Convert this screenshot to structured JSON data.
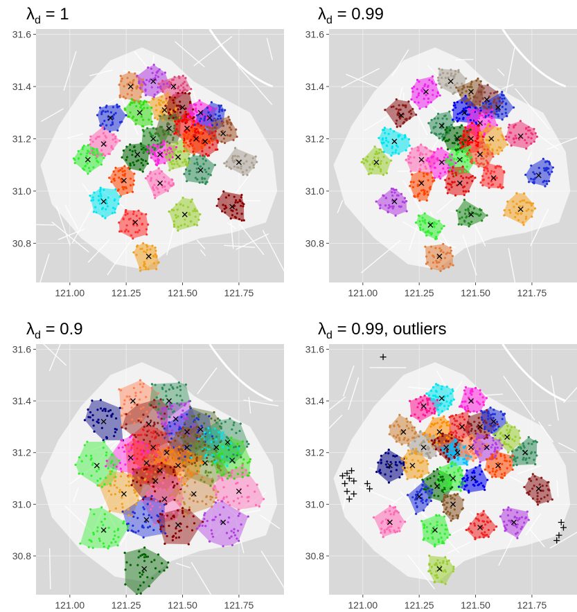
{
  "figure": {
    "background": "#ffffff",
    "map_background": "#d9d9d9",
    "land_color": "#f2f2f2",
    "road_color": "#ffffff"
  },
  "chart_data": [
    {
      "type": "scatter",
      "title": {
        "symbol": "λ",
        "subscript": "d",
        "rest": " = 1"
      },
      "xlim": [
        120.85,
        121.95
      ],
      "ylim": [
        30.65,
        31.62
      ],
      "x_ticks": [
        121.0,
        121.25,
        121.5,
        121.75
      ],
      "x_tick_labels": [
        "121.00",
        "121.25",
        "121.50",
        "121.75"
      ],
      "y_ticks": [
        30.8,
        31.0,
        31.2,
        31.4,
        31.6
      ],
      "y_tick_labels": [
        "30.8",
        "31.0",
        "31.2",
        "31.4",
        "31.6"
      ],
      "grid": true,
      "centers": [
        {
          "x": 121.27,
          "y": 31.4,
          "color": "#e07b39"
        },
        {
          "x": 121.37,
          "y": 31.42,
          "color": "#b03de0"
        },
        {
          "x": 121.46,
          "y": 31.4,
          "color": "#e0457b"
        },
        {
          "x": 121.18,
          "y": 31.28,
          "color": "#1f2fd6"
        },
        {
          "x": 121.31,
          "y": 31.3,
          "color": "#33dd11"
        },
        {
          "x": 121.42,
          "y": 31.31,
          "color": "#f0a020"
        },
        {
          "x": 121.5,
          "y": 31.32,
          "color": "#8b0000"
        },
        {
          "x": 121.58,
          "y": 31.3,
          "color": "#ff22dd"
        },
        {
          "x": 121.62,
          "y": 31.28,
          "color": "#1f2fd6"
        },
        {
          "x": 121.68,
          "y": 31.22,
          "color": "#a0522d"
        },
        {
          "x": 121.15,
          "y": 31.18,
          "color": "#ff69b4"
        },
        {
          "x": 121.3,
          "y": 31.14,
          "color": "#006400"
        },
        {
          "x": 121.37,
          "y": 31.2,
          "color": "#228b22"
        },
        {
          "x": 121.44,
          "y": 31.24,
          "color": "#556b2f"
        },
        {
          "x": 121.52,
          "y": 31.24,
          "color": "#ff0000"
        },
        {
          "x": 121.6,
          "y": 31.19,
          "color": "#e01010"
        },
        {
          "x": 121.4,
          "y": 31.14,
          "color": "#ff22dd"
        },
        {
          "x": 121.48,
          "y": 31.13,
          "color": "#9acd32"
        },
        {
          "x": 121.56,
          "y": 31.2,
          "color": "#ff4500"
        },
        {
          "x": 121.08,
          "y": 31.12,
          "color": "#33ee33"
        },
        {
          "x": 121.24,
          "y": 31.04,
          "color": "#ff4500"
        },
        {
          "x": 121.4,
          "y": 31.03,
          "color": "#ff69b4"
        },
        {
          "x": 121.58,
          "y": 31.08,
          "color": "#2e8b57"
        },
        {
          "x": 121.75,
          "y": 31.11,
          "color": "#a89f91"
        },
        {
          "x": 121.15,
          "y": 30.96,
          "color": "#00e5ee"
        },
        {
          "x": 121.29,
          "y": 30.88,
          "color": "#ff3030"
        },
        {
          "x": 121.51,
          "y": 30.91,
          "color": "#9acd32"
        },
        {
          "x": 121.72,
          "y": 30.94,
          "color": "#8b0000"
        },
        {
          "x": 121.35,
          "y": 30.75,
          "color": "#f0a020"
        }
      ]
    },
    {
      "type": "scatter",
      "title": {
        "symbol": "λ",
        "subscript": "d",
        "rest": " = 0.99"
      },
      "xlim": [
        120.85,
        121.95
      ],
      "ylim": [
        30.65,
        31.62
      ],
      "x_ticks": [
        121.0,
        121.25,
        121.5,
        121.75
      ],
      "x_tick_labels": [
        "121.00",
        "121.25",
        "121.50",
        "121.75"
      ],
      "y_ticks": [
        30.8,
        31.0,
        31.2,
        31.4,
        31.6
      ],
      "y_tick_labels": [
        "30.8",
        "31.0",
        "31.2",
        "31.4",
        "31.6"
      ],
      "grid": true,
      "centers": [
        {
          "x": 121.28,
          "y": 31.38,
          "color": "#ee22ee"
        },
        {
          "x": 121.39,
          "y": 31.42,
          "color": "#a89f91"
        },
        {
          "x": 121.48,
          "y": 31.38,
          "color": "#8b5a2b"
        },
        {
          "x": 121.55,
          "y": 31.35,
          "color": "#8b3a3a"
        },
        {
          "x": 121.6,
          "y": 31.32,
          "color": "#1f2fd6"
        },
        {
          "x": 121.17,
          "y": 31.29,
          "color": "#8b1a1a"
        },
        {
          "x": 121.35,
          "y": 31.25,
          "color": "#2e8b57"
        },
        {
          "x": 121.45,
          "y": 31.3,
          "color": "#0000ee"
        },
        {
          "x": 121.52,
          "y": 31.26,
          "color": "#ff22dd"
        },
        {
          "x": 121.14,
          "y": 31.19,
          "color": "#00e5ee"
        },
        {
          "x": 121.26,
          "y": 31.12,
          "color": "#ff69b4"
        },
        {
          "x": 121.42,
          "y": 31.2,
          "color": "#006400"
        },
        {
          "x": 121.48,
          "y": 31.2,
          "color": "#ff0000"
        },
        {
          "x": 121.57,
          "y": 31.2,
          "color": "#f0a020"
        },
        {
          "x": 121.7,
          "y": 31.21,
          "color": "#ee3377"
        },
        {
          "x": 121.35,
          "y": 31.11,
          "color": "#ff22dd"
        },
        {
          "x": 121.43,
          "y": 31.12,
          "color": "#33ee33"
        },
        {
          "x": 121.52,
          "y": 31.14,
          "color": "#ee5533"
        },
        {
          "x": 121.06,
          "y": 31.11,
          "color": "#9acd32"
        },
        {
          "x": 121.26,
          "y": 31.03,
          "color": "#ff4500"
        },
        {
          "x": 121.43,
          "y": 31.03,
          "color": "#e01010"
        },
        {
          "x": 121.58,
          "y": 31.05,
          "color": "#ff3030"
        },
        {
          "x": 121.78,
          "y": 31.06,
          "color": "#1f2fd6"
        },
        {
          "x": 121.14,
          "y": 30.96,
          "color": "#b03de0"
        },
        {
          "x": 121.3,
          "y": 30.87,
          "color": "#33ee33"
        },
        {
          "x": 121.48,
          "y": 30.91,
          "color": "#228b22"
        },
        {
          "x": 121.7,
          "y": 30.93,
          "color": "#f0a020"
        },
        {
          "x": 121.34,
          "y": 30.75,
          "color": "#e07b39"
        }
      ]
    },
    {
      "type": "scatter",
      "title": {
        "symbol": "λ",
        "subscript": "d",
        "rest": " = 0.9"
      },
      "xlim": [
        120.85,
        121.95
      ],
      "ylim": [
        30.65,
        31.62
      ],
      "x_ticks": [
        121.0,
        121.25,
        121.5,
        121.75
      ],
      "x_tick_labels": [
        "121.00",
        "121.25",
        "121.50",
        "121.75"
      ],
      "y_ticks": [
        30.8,
        31.0,
        31.2,
        31.4,
        31.6
      ],
      "y_tick_labels": [
        "30.8",
        "31.0",
        "31.2",
        "31.4",
        "31.6"
      ],
      "grid": true,
      "centers": [
        {
          "x": 121.28,
          "y": 31.4,
          "color": "#ff7f50"
        },
        {
          "x": 121.44,
          "y": 31.4,
          "color": "#2e8b57"
        },
        {
          "x": 121.15,
          "y": 31.32,
          "color": "#000080"
        },
        {
          "x": 121.35,
          "y": 31.31,
          "color": "#8b1a1a"
        },
        {
          "x": 121.47,
          "y": 31.33,
          "color": "#b03de0"
        },
        {
          "x": 121.52,
          "y": 31.28,
          "color": "#1f2fd6"
        },
        {
          "x": 121.58,
          "y": 31.29,
          "color": "#556b2f"
        },
        {
          "x": 121.65,
          "y": 31.22,
          "color": "#00e5ee"
        },
        {
          "x": 121.7,
          "y": 31.24,
          "color": "#2e8b57"
        },
        {
          "x": 121.72,
          "y": 31.17,
          "color": "#33dd11"
        },
        {
          "x": 121.27,
          "y": 31.18,
          "color": "#ff22dd"
        },
        {
          "x": 121.37,
          "y": 31.22,
          "color": "#ee2222"
        },
        {
          "x": 121.43,
          "y": 31.2,
          "color": "#cd5c5c"
        },
        {
          "x": 121.52,
          "y": 31.22,
          "color": "#8b4513"
        },
        {
          "x": 121.6,
          "y": 31.16,
          "color": "#6b8e23"
        },
        {
          "x": 121.12,
          "y": 31.15,
          "color": "#33ee33"
        },
        {
          "x": 121.34,
          "y": 31.16,
          "color": "#ff3030"
        },
        {
          "x": 121.4,
          "y": 31.13,
          "color": "#e07b39"
        },
        {
          "x": 121.48,
          "y": 31.15,
          "color": "#ff7f00"
        },
        {
          "x": 121.24,
          "y": 31.04,
          "color": "#f0a020"
        },
        {
          "x": 121.38,
          "y": 31.09,
          "color": "#8b0000"
        },
        {
          "x": 121.42,
          "y": 31.02,
          "color": "#ff69b4"
        },
        {
          "x": 121.55,
          "y": 31.04,
          "color": "#cd853f"
        },
        {
          "x": 121.75,
          "y": 31.05,
          "color": "#ff69b4"
        },
        {
          "x": 121.15,
          "y": 30.9,
          "color": "#33ee33"
        },
        {
          "x": 121.34,
          "y": 30.94,
          "color": "#1f2fd6"
        },
        {
          "x": 121.48,
          "y": 30.92,
          "color": "#8b0000"
        },
        {
          "x": 121.68,
          "y": 30.93,
          "color": "#b03de0"
        },
        {
          "x": 121.33,
          "y": 30.75,
          "color": "#006400"
        }
      ]
    },
    {
      "type": "scatter",
      "title": {
        "symbol": "λ",
        "subscript": "d",
        "rest": " = 0.99, outliers"
      },
      "xlim": [
        120.85,
        121.95
      ],
      "ylim": [
        30.65,
        31.62
      ],
      "x_ticks": [
        121.0,
        121.25,
        121.5,
        121.75
      ],
      "x_tick_labels": [
        "121.00",
        "121.25",
        "121.50",
        "121.75"
      ],
      "y_ticks": [
        30.8,
        31.0,
        31.2,
        31.4,
        31.6
      ],
      "y_tick_labels": [
        "30.8",
        "31.0",
        "31.2",
        "31.4",
        "31.6"
      ],
      "grid": true,
      "centers": [
        {
          "x": 121.27,
          "y": 31.38,
          "color": "#ff1493"
        },
        {
          "x": 121.35,
          "y": 31.41,
          "color": "#00e5ee"
        },
        {
          "x": 121.48,
          "y": 31.4,
          "color": "#ff22dd"
        },
        {
          "x": 121.18,
          "y": 31.28,
          "color": "#cd853f"
        },
        {
          "x": 121.34,
          "y": 31.28,
          "color": "#ff8c00"
        },
        {
          "x": 121.44,
          "y": 31.3,
          "color": "#ee2222"
        },
        {
          "x": 121.52,
          "y": 31.3,
          "color": "#8b1a1a"
        },
        {
          "x": 121.58,
          "y": 31.32,
          "color": "#1f2fd6"
        },
        {
          "x": 121.64,
          "y": 31.26,
          "color": "#9acd32"
        },
        {
          "x": 121.72,
          "y": 31.2,
          "color": "#2e8b57"
        },
        {
          "x": 121.27,
          "y": 31.22,
          "color": "#a89f91"
        },
        {
          "x": 121.37,
          "y": 31.22,
          "color": "#8b0000"
        },
        {
          "x": 121.42,
          "y": 31.2,
          "color": "#00bfff"
        },
        {
          "x": 121.48,
          "y": 31.22,
          "color": "#ff7f50"
        },
        {
          "x": 121.55,
          "y": 31.22,
          "color": "#b03de0"
        },
        {
          "x": 121.6,
          "y": 31.15,
          "color": "#ff4500"
        },
        {
          "x": 121.12,
          "y": 31.15,
          "color": "#000080"
        },
        {
          "x": 121.22,
          "y": 31.15,
          "color": "#f0a020"
        },
        {
          "x": 121.33,
          "y": 31.07,
          "color": "#006400"
        },
        {
          "x": 121.4,
          "y": 31.1,
          "color": "#33ee33"
        },
        {
          "x": 121.49,
          "y": 31.1,
          "color": "#0000ee"
        },
        {
          "x": 121.25,
          "y": 31.03,
          "color": "#1f2fd6"
        },
        {
          "x": 121.4,
          "y": 31.0,
          "color": "#8b5a2b"
        },
        {
          "x": 121.78,
          "y": 31.06,
          "color": "#8b1a1a"
        },
        {
          "x": 121.12,
          "y": 30.93,
          "color": "#ff69b4"
        },
        {
          "x": 121.32,
          "y": 30.9,
          "color": "#33ee33"
        },
        {
          "x": 121.52,
          "y": 30.91,
          "color": "#ee2222"
        },
        {
          "x": 121.67,
          "y": 30.93,
          "color": "#b03de0"
        },
        {
          "x": 121.34,
          "y": 30.75,
          "color": "#9acd32"
        }
      ],
      "outliers": [
        {
          "x": 121.09,
          "y": 31.57
        },
        {
          "x": 120.95,
          "y": 31.13
        },
        {
          "x": 120.93,
          "y": 31.12
        },
        {
          "x": 120.91,
          "y": 31.11
        },
        {
          "x": 120.96,
          "y": 31.09
        },
        {
          "x": 120.94,
          "y": 31.1
        },
        {
          "x": 120.92,
          "y": 31.08
        },
        {
          "x": 121.02,
          "y": 31.08
        },
        {
          "x": 121.03,
          "y": 31.06
        },
        {
          "x": 120.93,
          "y": 31.05
        },
        {
          "x": 120.96,
          "y": 31.04
        },
        {
          "x": 120.94,
          "y": 31.02
        },
        {
          "x": 121.88,
          "y": 30.93
        },
        {
          "x": 121.89,
          "y": 30.91
        },
        {
          "x": 121.87,
          "y": 30.88
        },
        {
          "x": 121.86,
          "y": 30.86
        }
      ]
    }
  ]
}
